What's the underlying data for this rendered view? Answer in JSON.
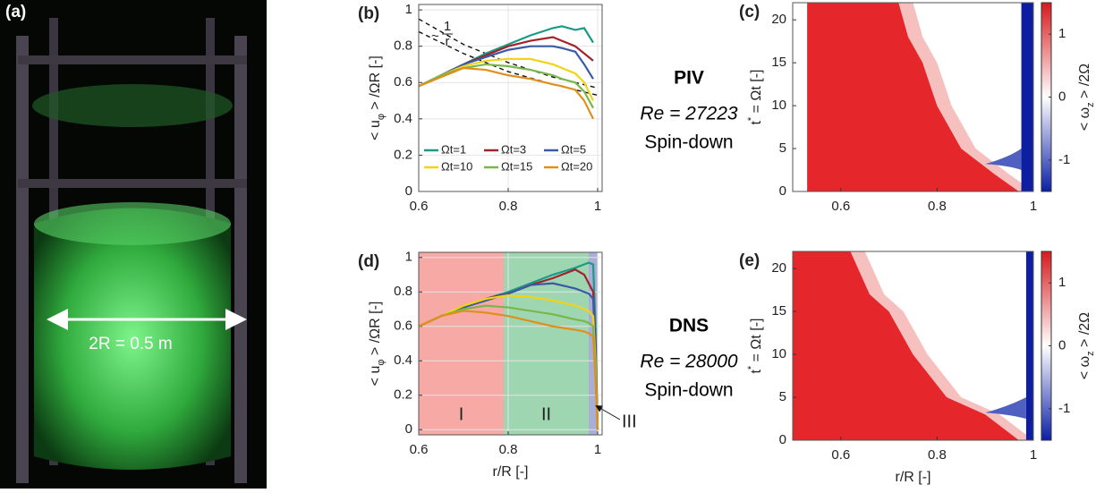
{
  "photo": {
    "panel": "(a)",
    "annotation": "2R = 0.5 m"
  },
  "side_text": [
    {
      "method": "PIV",
      "reynolds": "Re = 27223",
      "case": "Spin-down"
    },
    {
      "method": "DNS",
      "reynolds": "Re = 28000",
      "case": "Spin-down"
    }
  ],
  "chart_data": [
    {
      "type": "line",
      "panel": "(b)",
      "ylabel": [
        "< u",
        "φ",
        " > /ΩR [-]"
      ],
      "xlim": [
        0.6,
        1.01
      ],
      "ylim": [
        0,
        1.03
      ],
      "xticks": [
        0.6,
        0.8,
        1
      ],
      "yticks": [
        0,
        0.2,
        0.4,
        0.6,
        0.8,
        1
      ],
      "grid": true,
      "x": [
        0.6,
        0.65,
        0.7,
        0.75,
        0.8,
        0.85,
        0.9,
        0.92,
        0.95,
        0.97,
        0.99
      ],
      "series": [
        {
          "name": "Ωt=1",
          "color": "#1a9a86",
          "values": [
            0.58,
            0.64,
            0.7,
            0.76,
            0.81,
            0.86,
            0.9,
            0.91,
            0.89,
            0.9,
            0.82
          ]
        },
        {
          "name": "Ωt=3",
          "color": "#a3232a",
          "values": [
            0.58,
            0.64,
            0.7,
            0.75,
            0.8,
            0.83,
            0.85,
            0.83,
            0.8,
            0.76,
            0.72
          ]
        },
        {
          "name": "Ωt=5",
          "color": "#3a5aa6",
          "values": [
            0.58,
            0.64,
            0.7,
            0.74,
            0.78,
            0.8,
            0.8,
            0.79,
            0.77,
            0.7,
            0.62
          ]
        },
        {
          "name": "Ωt=10",
          "color": "#f0d415",
          "values": [
            0.58,
            0.64,
            0.69,
            0.72,
            0.73,
            0.73,
            0.7,
            0.68,
            0.65,
            0.6,
            0.5
          ]
        },
        {
          "name": "Ωt=15",
          "color": "#7ab648",
          "values": [
            0.58,
            0.64,
            0.68,
            0.7,
            0.69,
            0.67,
            0.64,
            0.62,
            0.6,
            0.55,
            0.46
          ]
        },
        {
          "name": "Ωt=20",
          "color": "#e0901a",
          "values": [
            0.58,
            0.63,
            0.68,
            0.67,
            0.64,
            0.62,
            0.59,
            0.58,
            0.56,
            0.5,
            0.4
          ]
        }
      ],
      "guides": [
        {
          "x": [
            0.6,
            0.7,
            0.8,
            0.9,
            1.0
          ],
          "values": [
            0.95,
            0.81,
            0.71,
            0.63,
            0.57
          ]
        },
        {
          "x": [
            0.6,
            0.7,
            0.8,
            0.9,
            1.0
          ],
          "values": [
            0.88,
            0.76,
            0.66,
            0.59,
            0.53
          ]
        }
      ],
      "annotation": {
        "tilde": "~",
        "numerator": "1",
        "denominator": "r"
      }
    },
    {
      "type": "heatmap",
      "panel": "(c)",
      "ylabel": [
        "t",
        "*",
        " = Ωt [-]"
      ],
      "colorbar_label": [
        "< ω",
        "z",
        " > /2Ω"
      ],
      "xlim": [
        0.5,
        1
      ],
      "ylim": [
        0,
        22
      ],
      "xticks": [
        0.6,
        0.8,
        1
      ],
      "yticks": [
        0,
        5,
        10,
        15,
        20
      ],
      "clim": [
        -1.5,
        1.5
      ],
      "cticks": [
        -1,
        0,
        1
      ]
    },
    {
      "type": "line",
      "panel": "(d)",
      "xlabel": "r/R [-]",
      "ylabel": [
        "< u",
        "φ",
        " > /ΩR [-]"
      ],
      "xlim": [
        0.6,
        1.01
      ],
      "ylim": [
        -0.03,
        1.03
      ],
      "xticks": [
        0.6,
        0.8,
        1
      ],
      "yticks": [
        0,
        0.2,
        0.4,
        0.6,
        0.8,
        1
      ],
      "grid": true,
      "x": [
        0.6,
        0.65,
        0.7,
        0.75,
        0.8,
        0.85,
        0.9,
        0.95,
        0.97,
        0.98,
        0.99,
        0.995,
        1.0
      ],
      "series": [
        {
          "name": "Ωt=1",
          "color": "#1a9a86",
          "values": [
            0.6,
            0.66,
            0.71,
            0.76,
            0.8,
            0.85,
            0.9,
            0.94,
            0.96,
            0.97,
            0.96,
            0.6,
            0.0
          ]
        },
        {
          "name": "Ωt=3",
          "color": "#a3232a",
          "values": [
            0.6,
            0.66,
            0.71,
            0.76,
            0.79,
            0.84,
            0.88,
            0.93,
            0.9,
            0.85,
            0.8,
            0.5,
            0.0
          ]
        },
        {
          "name": "Ωt=5",
          "color": "#3a5aa6",
          "values": [
            0.6,
            0.66,
            0.71,
            0.75,
            0.79,
            0.84,
            0.85,
            0.82,
            0.8,
            0.79,
            0.76,
            0.45,
            0.0
          ]
        },
        {
          "name": "Ωt=10",
          "color": "#f0d415",
          "values": [
            0.6,
            0.66,
            0.72,
            0.76,
            0.78,
            0.77,
            0.75,
            0.72,
            0.7,
            0.69,
            0.66,
            0.4,
            0.0
          ]
        },
        {
          "name": "Ωt=15",
          "color": "#7ab648",
          "values": [
            0.6,
            0.66,
            0.7,
            0.72,
            0.71,
            0.69,
            0.67,
            0.64,
            0.63,
            0.62,
            0.6,
            0.35,
            0.0
          ]
        },
        {
          "name": "Ωt=20",
          "color": "#e0901a",
          "values": [
            0.6,
            0.66,
            0.69,
            0.68,
            0.66,
            0.63,
            0.6,
            0.58,
            0.57,
            0.56,
            0.54,
            0.3,
            0.0
          ]
        }
      ],
      "regions": [
        {
          "label": "I",
          "range": [
            0.6,
            0.79
          ],
          "color": "#f7a9a6"
        },
        {
          "label": "II",
          "range": [
            0.79,
            0.98
          ],
          "color": "#9fd6b2"
        },
        {
          "label": "III",
          "range": [
            0.98,
            1.0
          ],
          "color": "#a9aed6"
        }
      ]
    },
    {
      "type": "heatmap",
      "panel": "(e)",
      "xlabel": "r/R [-]",
      "ylabel": [
        "t",
        "*",
        " = Ωt [-]"
      ],
      "colorbar_label": [
        "< ω",
        "z",
        " > /2Ω"
      ],
      "xlim": [
        0.5,
        1
      ],
      "ylim": [
        0,
        22
      ],
      "xticks": [
        0.6,
        0.8,
        1
      ],
      "yticks": [
        0,
        5,
        10,
        15,
        20
      ],
      "clim": [
        -1.5,
        1.5
      ],
      "cticks": [
        -1,
        0,
        1
      ]
    }
  ]
}
